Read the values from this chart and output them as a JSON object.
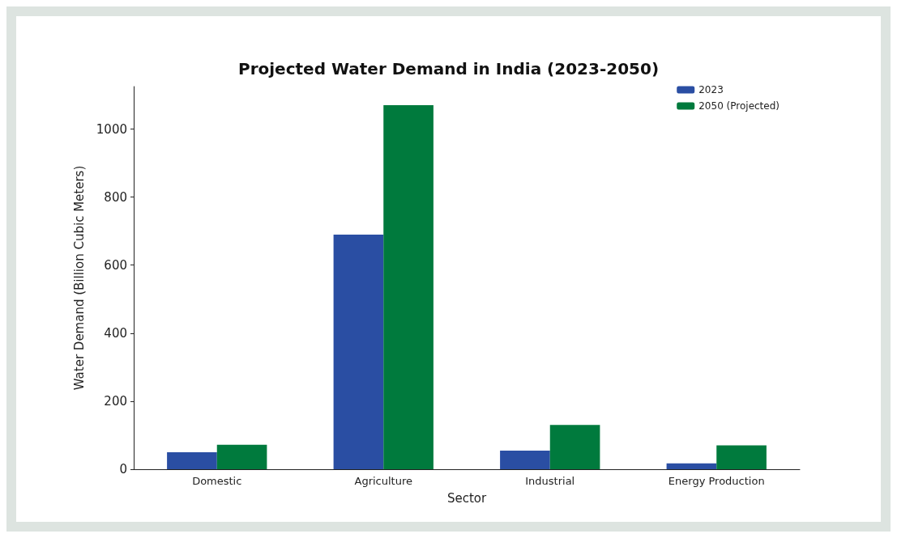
{
  "chart_data": {
    "type": "bar",
    "title": "Projected Water Demand in India (2023-2050)",
    "xlabel": "Sector",
    "ylabel": "Water Demand (Billion Cubic Meters)",
    "categories": [
      "Domestic",
      "Agriculture",
      "Industrial",
      "Energy Production"
    ],
    "series": [
      {
        "name": "2023",
        "color": "#2a4ea3",
        "values": [
          50,
          690,
          55,
          17
        ]
      },
      {
        "name": "2050 (Projected)",
        "color": "#007a3d",
        "values": [
          72,
          1070,
          130,
          70
        ]
      }
    ],
    "ylim": [
      0,
      1125
    ],
    "yticks": [
      0,
      200,
      400,
      600,
      800,
      1000
    ],
    "grid": false,
    "legend": "top right"
  }
}
